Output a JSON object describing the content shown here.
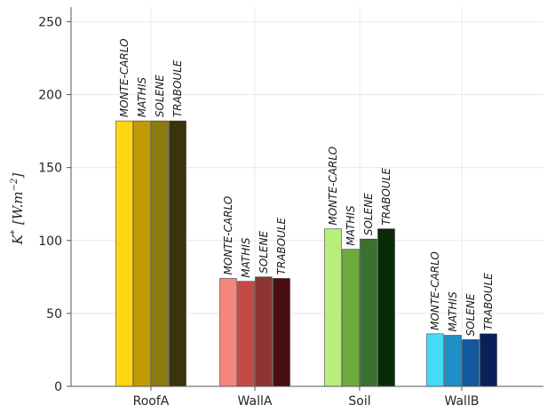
{
  "chart_data": {
    "type": "bar",
    "categories": [
      "RoofA",
      "WallA",
      "Soil",
      "WallB"
    ],
    "methods": [
      "MONTE-CARLO",
      "MATHIS",
      "SOLENE",
      "TRABOULE"
    ],
    "values": [
      [
        182,
        182,
        182,
        182
      ],
      [
        74,
        72,
        75,
        74
      ],
      [
        108,
        94,
        101,
        108
      ],
      [
        36,
        35,
        32,
        36
      ]
    ],
    "colors": [
      [
        "#ffd70f",
        "#c59b04",
        "#8c7a12",
        "#3b3309"
      ],
      [
        "#f5867b",
        "#c54a45",
        "#8c3535",
        "#4a0d10"
      ],
      [
        "#b8ee7b",
        "#6cab3c",
        "#3a7131",
        "#0a2b0a"
      ],
      [
        "#43dcf4",
        "#1f8fc7",
        "#12589c",
        "#0a1f5c"
      ]
    ],
    "ylabel": "K* [W.m⁻²]",
    "ylabel_main": "K",
    "ylabel_sup": "*",
    "ylabel_bracket_open": "[W.m",
    "ylabel_exp": "−2",
    "ylabel_bracket_close": "]",
    "ylim": [
      0,
      260
    ],
    "yticks": [
      "0",
      "50",
      "100",
      "150",
      "200",
      "250"
    ],
    "ytick_values": [
      0,
      50,
      100,
      150,
      200,
      250
    ],
    "grid": true,
    "legend": "none"
  }
}
